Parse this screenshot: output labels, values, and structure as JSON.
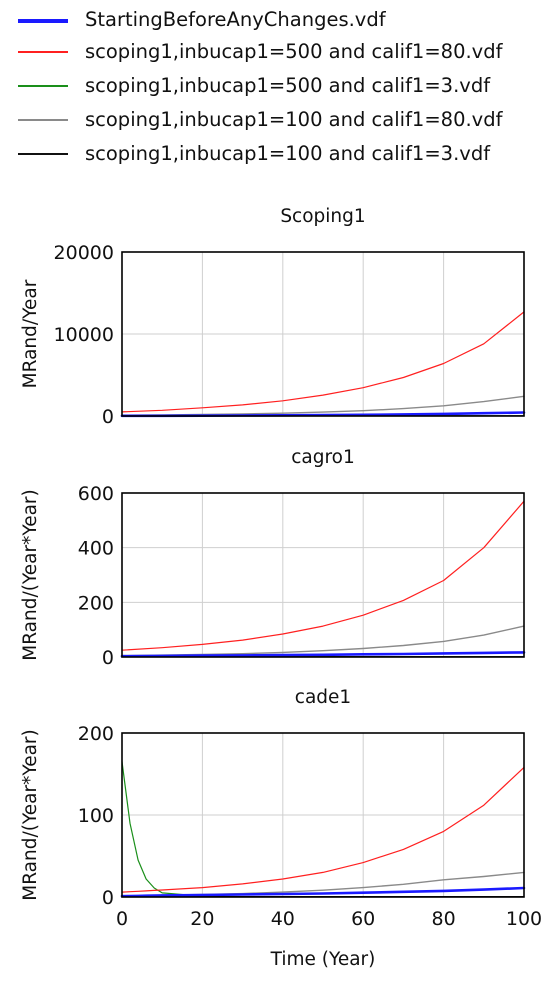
{
  "legend": [
    {
      "label": "StartingBeforeAnyChanges.vdf",
      "color": "#1a1aff"
    },
    {
      "label": "scoping1,inbucap1=500 and calif1=80.vdf",
      "color": "#ff2020"
    },
    {
      "label": "scoping1,inbucap1=500 and calif1=3.vdf",
      "color": "#1a8f1a"
    },
    {
      "label": "scoping1,inbucap1=100 and calif1=80.vdf",
      "color": "#8a8a8a"
    },
    {
      "label": "scoping1,inbucap1=100 and calif1=3.vdf",
      "color": "#111111"
    }
  ],
  "chart_data": [
    {
      "type": "line",
      "title": "Scoping1",
      "xlabel": "",
      "ylabel": "MRand/Year",
      "xlim": [
        0,
        100
      ],
      "ylim": [
        0,
        20000
      ],
      "yticks": [
        "0",
        "10000",
        "20000"
      ],
      "xticks": [],
      "grid": true,
      "x": [
        0,
        10,
        20,
        30,
        40,
        50,
        60,
        70,
        80,
        90,
        100
      ],
      "series": [
        {
          "name": "StartingBeforeAnyChanges.vdf",
          "color": "#1a1aff",
          "values": [
            20,
            30,
            40,
            60,
            80,
            110,
            150,
            200,
            260,
            340,
            430
          ]
        },
        {
          "name": "scoping1,inbucap1=500 and calif1=80.vdf",
          "color": "#ff2020",
          "values": [
            500,
            700,
            1000,
            1350,
            1850,
            2550,
            3450,
            4700,
            6400,
            8800,
            12700
          ]
        },
        {
          "name": "scoping1,inbucap1=500 and calif1=3.vdf",
          "color": "#1a8f1a",
          "values": [
            20,
            20,
            20,
            20,
            20,
            20,
            20,
            20,
            20,
            20,
            20
          ]
        },
        {
          "name": "scoping1,inbucap1=100 and calif1=80.vdf",
          "color": "#8a8a8a",
          "values": [
            100,
            130,
            180,
            250,
            340,
            470,
            650,
            900,
            1250,
            1750,
            2400
          ]
        },
        {
          "name": "scoping1,inbucap1=100 and calif1=3.vdf",
          "color": "#111111",
          "values": [
            10,
            10,
            10,
            10,
            10,
            10,
            10,
            10,
            10,
            10,
            10
          ]
        }
      ]
    },
    {
      "type": "line",
      "title": "cagro1",
      "xlabel": "",
      "ylabel": "MRand/(Year*Year)",
      "xlim": [
        0,
        100
      ],
      "ylim": [
        0,
        600
      ],
      "yticks": [
        "0",
        "200",
        "400",
        "600"
      ],
      "xticks": [],
      "grid": true,
      "x": [
        0,
        10,
        20,
        30,
        40,
        50,
        60,
        70,
        80,
        90,
        100
      ],
      "series": [
        {
          "name": "StartingBeforeAnyChanges.vdf",
          "color": "#1a1aff",
          "values": [
            3,
            4,
            5,
            6,
            7,
            8,
            10,
            11,
            13,
            15,
            17
          ]
        },
        {
          "name": "scoping1,inbucap1=500 and calif1=80.vdf",
          "color": "#ff2020",
          "values": [
            25,
            34,
            46,
            62,
            84,
            113,
            153,
            207,
            280,
            400,
            570
          ]
        },
        {
          "name": "scoping1,inbucap1=500 and calif1=3.vdf",
          "color": "#1a8f1a",
          "values": [
            2,
            1,
            1,
            1,
            1,
            1,
            1,
            1,
            1,
            1,
            1
          ]
        },
        {
          "name": "scoping1,inbucap1=100 and calif1=80.vdf",
          "color": "#8a8a8a",
          "values": [
            5,
            7,
            9,
            12,
            17,
            23,
            31,
            42,
            57,
            80,
            113
          ]
        },
        {
          "name": "scoping1,inbucap1=100 and calif1=3.vdf",
          "color": "#111111",
          "values": [
            1,
            1,
            1,
            1,
            1,
            1,
            1,
            1,
            1,
            1,
            1
          ]
        }
      ]
    },
    {
      "type": "line",
      "title": "cade1",
      "xlabel": "Time (Year)",
      "ylabel": "MRand/(Year*Year)",
      "xlim": [
        0,
        100
      ],
      "ylim": [
        0,
        200
      ],
      "yticks": [
        "0",
        "100",
        "200"
      ],
      "xticks": [
        "0",
        "20",
        "40",
        "60",
        "80",
        "100"
      ],
      "grid": true,
      "x": [
        0,
        2,
        4,
        6,
        8,
        10,
        20,
        30,
        40,
        50,
        60,
        70,
        80,
        90,
        100
      ],
      "series": [
        {
          "name": "StartingBeforeAnyChanges.vdf",
          "color": "#1a1aff",
          "values": [
            1,
            1.2,
            1.4,
            1.6,
            1.8,
            2,
            2.5,
            3,
            3.6,
            4.3,
            5.2,
            6.3,
            7.5,
            9,
            11
          ]
        },
        {
          "name": "scoping1,inbucap1=500 and calif1=80.vdf",
          "color": "#ff2020",
          "values": [
            6,
            6.5,
            7,
            7.5,
            8,
            8.5,
            11.5,
            16,
            22,
            30,
            42,
            58,
            80,
            112,
            158
          ]
        },
        {
          "name": "scoping1,inbucap1=500 and calif1=3.vdf",
          "color": "#1a8f1a",
          "values": [
            165,
            90,
            45,
            22,
            11,
            5,
            1,
            0.5,
            0.3,
            0.3,
            0.3,
            0.3,
            0.3,
            0.3,
            0.3
          ]
        },
        {
          "name": "scoping1,inbucap1=100 and calif1=80.vdf",
          "color": "#8a8a8a",
          "values": [
            1.2,
            1.4,
            1.6,
            1.8,
            2,
            2.2,
            3,
            4.2,
            6,
            8.3,
            11.5,
            15.5,
            21,
            25,
            30
          ]
        },
        {
          "name": "scoping1,inbucap1=100 and calif1=3.vdf",
          "color": "#111111",
          "values": [
            0.5,
            0.5,
            0.5,
            0.5,
            0.5,
            0.5,
            0.5,
            0.5,
            0.5,
            0.5,
            0.5,
            0.5,
            0.5,
            0.5,
            0.5
          ]
        }
      ]
    }
  ]
}
